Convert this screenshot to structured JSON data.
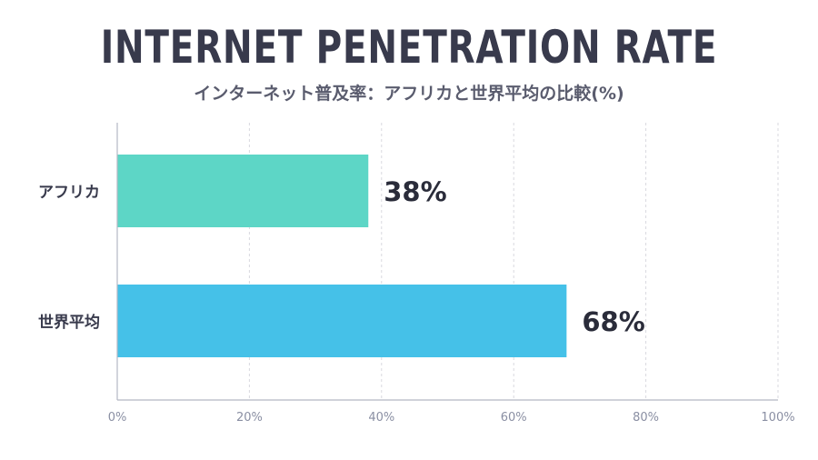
{
  "chart_data": {
    "type": "bar",
    "orientation": "horizontal",
    "title": "INTERNET PENETRATION RATE",
    "subtitle": "インターネット普及率：アフリカと世界平均の比較(%)",
    "categories": [
      "アフリカ",
      "世界平均"
    ],
    "values": [
      38,
      68
    ],
    "value_labels": [
      "38%",
      "68%"
    ],
    "xlim": [
      0,
      100
    ],
    "xticks": [
      0,
      20,
      40,
      60,
      80,
      100
    ],
    "xtick_labels": [
      "0%",
      "20%",
      "40%",
      "60%",
      "80%",
      "100%"
    ],
    "colors": [
      "#5dd6c6",
      "#45c1e8"
    ],
    "grid": "vertical-dashed",
    "legend": "none"
  }
}
